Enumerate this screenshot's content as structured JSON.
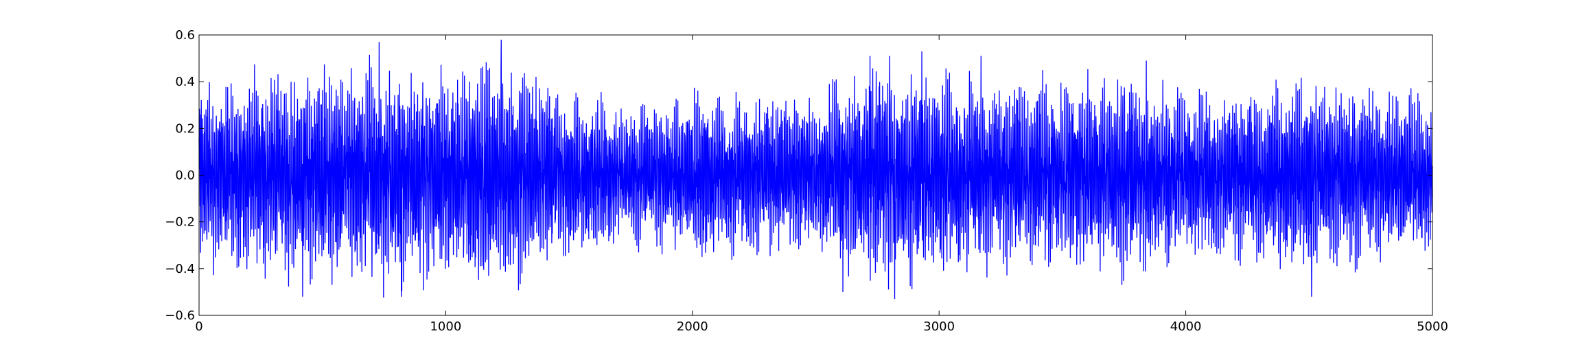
{
  "chart_data": {
    "type": "line",
    "title": "",
    "xlabel": "",
    "ylabel": "",
    "xlim": [
      0,
      5000
    ],
    "ylim": [
      -0.6,
      0.6
    ],
    "xticks": [
      0,
      1000,
      2000,
      3000,
      4000,
      5000
    ],
    "xtick_labels": [
      "0",
      "1000",
      "2000",
      "3000",
      "4000",
      "5000"
    ],
    "yticks": [
      -0.6,
      -0.4,
      -0.2,
      0.0,
      0.2,
      0.4,
      0.6
    ],
    "ytick_labels": [
      "−0.6",
      "−0.4",
      "−0.2",
      "0.0",
      "0.2",
      "0.4",
      "0.6"
    ],
    "grid": false,
    "legend": "none",
    "series": [
      {
        "color": "#0000ff",
        "n_points": 5000,
        "x_range": [
          0,
          5000
        ],
        "mean": 0.0,
        "typical_peak": 0.4,
        "max": 0.58,
        "min": -0.53,
        "envelope": [
          {
            "x": 0,
            "peak": 0.38
          },
          {
            "x": 250,
            "peak": 0.42
          },
          {
            "x": 500,
            "peak": 0.43
          },
          {
            "x": 750,
            "peak": 0.47
          },
          {
            "x": 1000,
            "peak": 0.44
          },
          {
            "x": 1250,
            "peak": 0.47
          },
          {
            "x": 1500,
            "peak": 0.34
          },
          {
            "x": 1750,
            "peak": 0.28
          },
          {
            "x": 2000,
            "peak": 0.34
          },
          {
            "x": 2250,
            "peak": 0.34
          },
          {
            "x": 2500,
            "peak": 0.33
          },
          {
            "x": 2750,
            "peak": 0.46
          },
          {
            "x": 3000,
            "peak": 0.43
          },
          {
            "x": 3250,
            "peak": 0.38
          },
          {
            "x": 3500,
            "peak": 0.38
          },
          {
            "x": 3750,
            "peak": 0.42
          },
          {
            "x": 4000,
            "peak": 0.34
          },
          {
            "x": 4250,
            "peak": 0.34
          },
          {
            "x": 4500,
            "peak": 0.4
          },
          {
            "x": 4750,
            "peak": 0.35
          },
          {
            "x": 5000,
            "peak": 0.33
          }
        ],
        "spikes": [
          {
            "x": 730,
            "y": 0.57
          },
          {
            "x": 1225,
            "y": 0.58
          },
          {
            "x": 820,
            "y": -0.52
          },
          {
            "x": 420,
            "y": -0.52
          },
          {
            "x": 2610,
            "y": -0.5
          },
          {
            "x": 2820,
            "y": -0.53
          },
          {
            "x": 4510,
            "y": -0.52
          },
          {
            "x": 2720,
            "y": 0.51
          },
          {
            "x": 2800,
            "y": 0.51
          },
          {
            "x": 2930,
            "y": 0.53
          },
          {
            "x": 3170,
            "y": 0.51
          },
          {
            "x": 3840,
            "y": 0.49
          },
          {
            "x": 3420,
            "y": 0.45
          }
        ]
      }
    ]
  }
}
